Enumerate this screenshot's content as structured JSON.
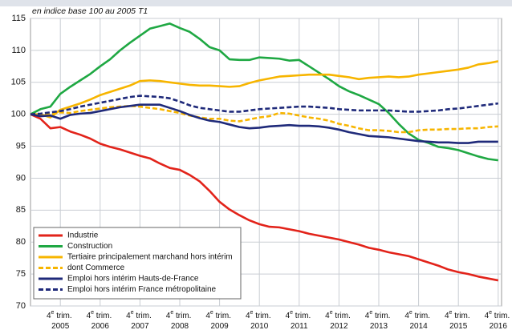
{
  "chart_data": {
    "type": "line",
    "subtitle": "en indice base 100 au 2005 T1",
    "categories": [
      null,
      null,
      null,
      "4e trim. 2005",
      null,
      null,
      null,
      "4e trim. 2006",
      null,
      null,
      null,
      "4e trim. 2007",
      null,
      null,
      null,
      "4e trim. 2008",
      null,
      null,
      null,
      "4e trim. 2009",
      null,
      null,
      null,
      "4e trim. 2010",
      null,
      null,
      null,
      "4e trim. 2011",
      null,
      null,
      null,
      "4e trim. 2012",
      null,
      null,
      null,
      "4e trim. 2013",
      null,
      null,
      null,
      "4e trim. 2014",
      null,
      null,
      null,
      "4e trim. 2015",
      null,
      null,
      null,
      "4e trim. 2016"
    ],
    "ylim": [
      70,
      115
    ],
    "yticks": [
      70,
      75,
      80,
      85,
      90,
      95,
      100,
      105,
      110,
      115
    ],
    "grid": true,
    "legend": "lower left",
    "series": [
      {
        "name": "Industrie",
        "color": "#e2231a",
        "dashed": false,
        "values": [
          100,
          99.3,
          97.8,
          98.0,
          97.3,
          96.8,
          96.2,
          95.4,
          94.9,
          94.5,
          94.0,
          93.5,
          93.1,
          92.3,
          91.6,
          91.3,
          90.5,
          89.5,
          88.0,
          86.3,
          85.1,
          84.2,
          83.4,
          82.8,
          82.4,
          82.3,
          82.0,
          81.7,
          81.3,
          81.0,
          80.7,
          80.4,
          80.0,
          79.6,
          79.1,
          78.8,
          78.4,
          78.1,
          77.8,
          77.3,
          76.8,
          76.3,
          75.7,
          75.3,
          75.0,
          74.6,
          74.3,
          74.0
        ]
      },
      {
        "name": "Construction",
        "color": "#1fa843",
        "dashed": false,
        "values": [
          100,
          100.8,
          101.2,
          103.2,
          104.3,
          105.3,
          106.3,
          107.5,
          108.6,
          110.0,
          111.2,
          112.3,
          113.4,
          113.8,
          114.2,
          113.5,
          112.9,
          111.8,
          110.5,
          110.0,
          108.6,
          108.5,
          108.5,
          108.9,
          108.8,
          108.7,
          108.4,
          108.5,
          107.5,
          106.5,
          105.5,
          104.4,
          103.6,
          103.0,
          102.3,
          101.6,
          100.2,
          98.5,
          97.0,
          96.0,
          95.5,
          94.9,
          94.7,
          94.4,
          93.9,
          93.4,
          93.0,
          92.8
        ]
      },
      {
        "name": "Tertiaire principalement marchand hors intérim",
        "color": "#f7b500",
        "dashed": false,
        "values": [
          100,
          100,
          99.5,
          100.7,
          101.2,
          101.7,
          102.3,
          103.0,
          103.5,
          104.0,
          104.5,
          105.2,
          105.3,
          105.2,
          105.0,
          104.8,
          104.6,
          104.5,
          104.5,
          104.4,
          104.3,
          104.4,
          104.9,
          105.3,
          105.6,
          105.9,
          106.0,
          106.1,
          106.2,
          106.2,
          106.2,
          106.0,
          105.8,
          105.5,
          105.7,
          105.8,
          105.9,
          105.8,
          105.9,
          106.2,
          106.4,
          106.6,
          106.8,
          107.0,
          107.3,
          107.8,
          108.0,
          108.3
        ]
      },
      {
        "name": "dont Commerce",
        "color": "#f7b500",
        "dashed": true,
        "values": [
          100,
          100,
          100,
          100.3,
          100.2,
          100.5,
          100.7,
          100.9,
          101.1,
          101.2,
          101.3,
          101.2,
          101.0,
          100.8,
          100.5,
          100.2,
          99.8,
          99.5,
          99.3,
          99.3,
          99.0,
          98.9,
          99.2,
          99.5,
          99.7,
          100.2,
          100.1,
          99.8,
          99.5,
          99.3,
          99.0,
          98.5,
          98.2,
          97.8,
          97.5,
          97.5,
          97.4,
          97.2,
          97.2,
          97.5,
          97.6,
          97.6,
          97.7,
          97.7,
          97.8,
          97.8,
          98.0,
          98.1
        ]
      },
      {
        "name": "Emploi hors intérim Hauts-de-France",
        "color": "#1f2a7a",
        "dashed": false,
        "values": [
          100,
          99.7,
          99.8,
          99.3,
          99.9,
          100.1,
          100.2,
          100.5,
          100.8,
          101.1,
          101.3,
          101.5,
          101.5,
          101.5,
          101.0,
          100.5,
          99.9,
          99.4,
          99.0,
          98.8,
          98.4,
          98.0,
          97.8,
          97.9,
          98.1,
          98.2,
          98.3,
          98.2,
          98.2,
          98.1,
          97.9,
          97.6,
          97.2,
          96.9,
          96.6,
          96.5,
          96.4,
          96.2,
          96.0,
          95.8,
          95.7,
          95.6,
          95.6,
          95.5,
          95.5,
          95.7,
          95.7,
          95.7
        ]
      },
      {
        "name": "Emploi hors intérim France métropolitaine",
        "color": "#1f2a7a",
        "dashed": true,
        "values": [
          100,
          100.1,
          100.3,
          100.5,
          100.8,
          101.2,
          101.5,
          101.8,
          102.1,
          102.4,
          102.7,
          102.9,
          102.8,
          102.7,
          102.5,
          102.0,
          101.4,
          101.0,
          100.8,
          100.6,
          100.4,
          100.4,
          100.6,
          100.8,
          100.9,
          101.0,
          101.1,
          101.2,
          101.2,
          101.1,
          101.0,
          100.8,
          100.7,
          100.6,
          100.6,
          100.6,
          100.6,
          100.5,
          100.4,
          100.4,
          100.5,
          100.6,
          100.8,
          100.9,
          101.1,
          101.3,
          101.5,
          101.7
        ]
      }
    ]
  }
}
